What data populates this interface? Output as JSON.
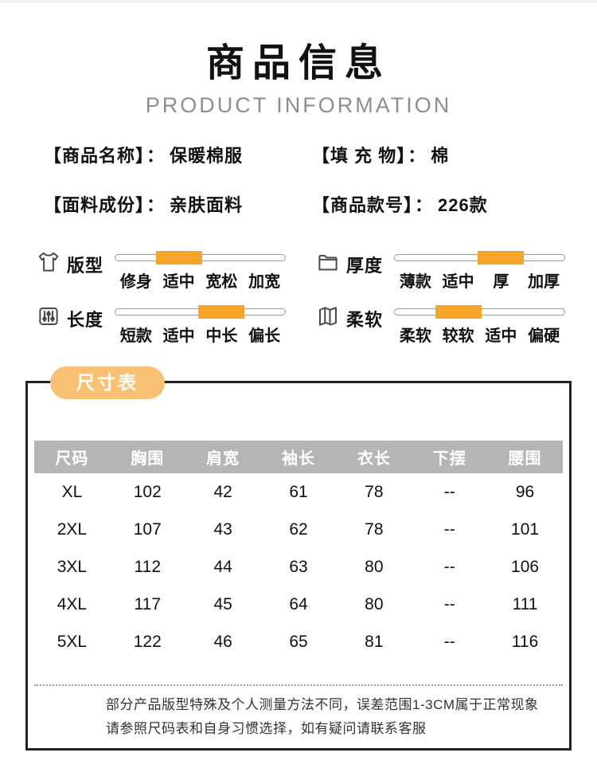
{
  "header": {
    "title": "商品信息",
    "subtitle": "PRODUCT INFORMATION"
  },
  "info": {
    "items": [
      {
        "label": "【商品名称】",
        "colon": "：",
        "value": "保暖棉服"
      },
      {
        "label": "【填 充 物】",
        "colon": "：",
        "value": "棉"
      },
      {
        "label": "【面料成份】",
        "colon": "：",
        "value": "亲肤面料"
      },
      {
        "label": "【商品款号】",
        "colon": "：",
        "value": "226款"
      }
    ]
  },
  "attributes": [
    {
      "name": "版型",
      "icon": "tshirt-icon",
      "options": [
        "修身",
        "适中",
        "宽松",
        "加宽"
      ],
      "active_index": 1,
      "active_option": "适中"
    },
    {
      "name": "厚度",
      "icon": "folder-icon",
      "options": [
        "薄款",
        "适中",
        "厚",
        "加厚"
      ],
      "active_index": 2,
      "active_option": "厚"
    },
    {
      "name": "长度",
      "icon": "sliders-icon",
      "options": [
        "短款",
        "适中",
        "中长",
        "偏长"
      ],
      "active_index": 2,
      "active_option": "中长"
    },
    {
      "name": "柔软",
      "icon": "fabric-icon",
      "options": [
        "柔软",
        "较软",
        "适中",
        "偏硬"
      ],
      "active_index": 1,
      "active_option": "较软"
    }
  ],
  "size_chart": {
    "tag": "尺寸表",
    "columns": [
      "尺码",
      "胸围",
      "肩宽",
      "袖长",
      "衣长",
      "下摆",
      "腰围"
    ],
    "rows": [
      [
        "XL",
        "102",
        "42",
        "61",
        "78",
        "--",
        "96"
      ],
      [
        "2XL",
        "107",
        "43",
        "62",
        "78",
        "--",
        "101"
      ],
      [
        "3XL",
        "112",
        "44",
        "63",
        "80",
        "--",
        "106"
      ],
      [
        "4XL",
        "117",
        "45",
        "64",
        "80",
        "--",
        "111"
      ],
      [
        "5XL",
        "122",
        "46",
        "65",
        "81",
        "--",
        "116"
      ]
    ],
    "note_lines": [
      "部分产品版型特殊及个人测量方法不同，误差范围1-3CM属于正常现象",
      "请参照尺码表和自身习惯选择，如有疑问请联系客服"
    ]
  },
  "colors": {
    "accent": "#F7A42B",
    "tag_bg": "#F8C173",
    "table_header_bg": "#B5B5B5"
  }
}
